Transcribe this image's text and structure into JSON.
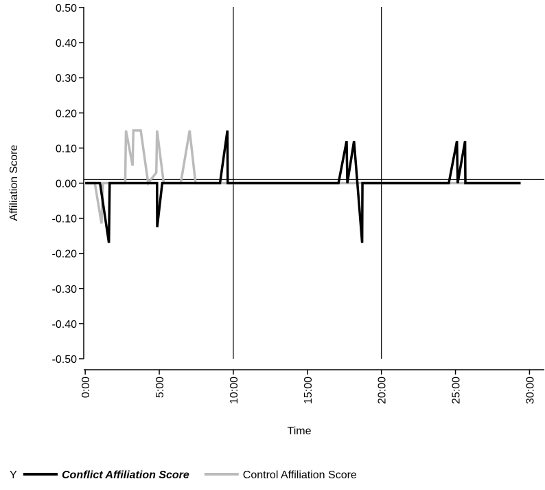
{
  "chart_data": {
    "type": "line",
    "xlabel": "Time",
    "ylabel": "Affiliation Score",
    "xlim": [
      -0.1,
      31
    ],
    "ylim": [
      -0.5,
      0.5
    ],
    "xticks": [
      {
        "value": 0,
        "label": "0:00"
      },
      {
        "value": 5,
        "label": "5:00"
      },
      {
        "value": 10,
        "label": "10:00"
      },
      {
        "value": 15,
        "label": "15:00"
      },
      {
        "value": 20,
        "label": "20:00"
      },
      {
        "value": 25,
        "label": "25:00"
      },
      {
        "value": 30,
        "label": "30:00"
      }
    ],
    "yticks": [
      {
        "value": 0.5,
        "label": "0.50"
      },
      {
        "value": 0.4,
        "label": "0.40"
      },
      {
        "value": 0.3,
        "label": "0.30"
      },
      {
        "value": 0.2,
        "label": "0.20"
      },
      {
        "value": 0.1,
        "label": "0.10"
      },
      {
        "value": 0,
        "label": "0.00"
      },
      {
        "value": -0.1,
        "label": "-0.10"
      },
      {
        "value": -0.2,
        "label": "-0.20"
      },
      {
        "value": -0.3,
        "label": "-0.30"
      },
      {
        "value": -0.4,
        "label": "-0.40"
      },
      {
        "value": -0.5,
        "label": "-0.50"
      }
    ],
    "reference_lines": {
      "x": [
        10,
        20
      ],
      "y": 0.01
    },
    "legend_title": "Y",
    "series": [
      {
        "name": "Conflict Affiliation Score",
        "color": "#000000",
        "x": [
          0,
          1.0,
          1.6,
          1.65,
          4.85,
          4.86,
          5.2,
          9.1,
          9.6,
          9.62,
          17.1,
          17.65,
          17.7,
          18.15,
          18.7,
          18.72,
          24.55,
          25.1,
          25.15,
          25.65,
          25.67,
          29.4
        ],
        "values": [
          0,
          0,
          -0.17,
          0,
          0,
          -0.125,
          0,
          0,
          0.15,
          0,
          0,
          0.12,
          0,
          0.12,
          -0.17,
          0,
          0,
          0.12,
          0,
          0.12,
          0,
          0
        ]
      },
      {
        "name": "Control Affiliation Score",
        "color": "#bbbbbb",
        "x": [
          0,
          0.65,
          1.1,
          1.2,
          2.7,
          2.75,
          3.2,
          3.25,
          3.75,
          4.25,
          4.8,
          4.85,
          5.3,
          6.45,
          7.05,
          7.45,
          29.4
        ],
        "values": [
          0,
          0,
          -0.115,
          0,
          0,
          0.15,
          0.05,
          0.15,
          0.15,
          0,
          0.03,
          0.15,
          0,
          0,
          0.15,
          0,
          0
        ]
      }
    ]
  }
}
